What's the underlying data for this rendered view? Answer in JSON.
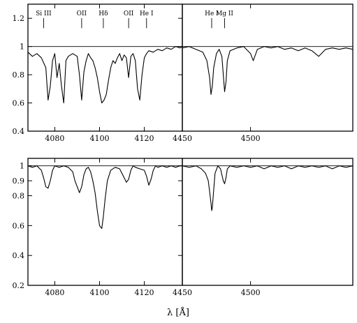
{
  "chart_data": [
    {
      "type": "line",
      "panel": "top-left",
      "xlim": [
        4068,
        4137
      ],
      "ylim": [
        0.4,
        1.3
      ],
      "xticks": [
        4080,
        4100,
        4120
      ],
      "xtick_labels": [
        "4080",
        "4100",
        "4120"
      ],
      "yticks": [
        0.4,
        0.6,
        0.8,
        1.0,
        1.2
      ],
      "ytick_labels": [
        "0.4",
        "0.6",
        "0.8",
        "1",
        "1.2"
      ],
      "continuum": 1.0,
      "line_ids": [
        {
          "label": "Si III",
          "x": 4075
        },
        {
          "label": "OII",
          "x": 4092
        },
        {
          "label": "Hδ",
          "x": 4101.7
        },
        {
          "label": "OII",
          "x": 4113
        },
        {
          "label": "He I",
          "x": 4121
        }
      ],
      "series": [
        {
          "x": [
            4068,
            4070,
            4072,
            4074,
            4076,
            4077,
            4078,
            4079,
            4080,
            4081,
            4082,
            4083,
            4084,
            4085,
            4086,
            4088,
            4090,
            4091,
            4092,
            4093,
            4094,
            4095,
            4096,
            4097,
            4098,
            4099,
            4100,
            4101,
            4102,
            4103,
            4104,
            4105,
            4106,
            4107,
            4108,
            4109,
            4110,
            4111,
            4112,
            4113,
            4114,
            4115,
            4116,
            4117,
            4118,
            4119,
            4120,
            4121,
            4122,
            4124,
            4126,
            4128,
            4130,
            4132,
            4134,
            4136,
            4137
          ],
          "y": [
            0.96,
            0.93,
            0.95,
            0.92,
            0.85,
            0.62,
            0.72,
            0.9,
            0.95,
            0.78,
            0.88,
            0.72,
            0.6,
            0.9,
            0.93,
            0.95,
            0.93,
            0.8,
            0.62,
            0.82,
            0.9,
            0.95,
            0.92,
            0.9,
            0.85,
            0.78,
            0.68,
            0.6,
            0.62,
            0.66,
            0.76,
            0.85,
            0.9,
            0.88,
            0.92,
            0.95,
            0.9,
            0.94,
            0.92,
            0.78,
            0.93,
            0.95,
            0.9,
            0.7,
            0.62,
            0.8,
            0.92,
            0.95,
            0.97,
            0.96,
            0.98,
            0.97,
            0.99,
            0.98,
            1.0,
            0.99,
            1.0
          ]
        }
      ]
    },
    {
      "type": "line",
      "panel": "top-right",
      "xlim": [
        4450,
        4575
      ],
      "ylim": [
        0.4,
        1.3
      ],
      "xticks": [
        4450,
        4500
      ],
      "xtick_labels": [
        "4450",
        "4500"
      ],
      "continuum": 1.0,
      "line_ids": [
        {
          "label": "He I",
          "x": 4471.5
        },
        {
          "label": "Mg II",
          "x": 4481
        }
      ],
      "series": [
        {
          "x": [
            4450,
            4455,
            4460,
            4465,
            4468,
            4470,
            4471,
            4472,
            4473,
            4475,
            4477,
            4479,
            4480,
            4481,
            4482,
            4483,
            4485,
            4490,
            4495,
            4500,
            4502,
            4505,
            4510,
            4515,
            4520,
            4525,
            4530,
            4535,
            4540,
            4545,
            4550,
            4555,
            4560,
            4565,
            4570,
            4575
          ],
          "y": [
            0.99,
            1.0,
            0.98,
            0.96,
            0.9,
            0.78,
            0.66,
            0.72,
            0.85,
            0.95,
            0.98,
            0.93,
            0.8,
            0.68,
            0.75,
            0.9,
            0.97,
            0.99,
            1.0,
            0.95,
            0.9,
            0.98,
            1.0,
            0.99,
            1.0,
            0.98,
            0.99,
            0.97,
            0.99,
            0.97,
            0.93,
            0.98,
            0.99,
            0.98,
            0.99,
            0.98
          ]
        }
      ]
    },
    {
      "type": "line",
      "panel": "bottom-left",
      "xlim": [
        4068,
        4137
      ],
      "ylim": [
        0.2,
        1.05
      ],
      "xticks": [
        4080,
        4100,
        4120
      ],
      "xtick_labels": [
        "4080",
        "4100",
        "4120"
      ],
      "yticks": [
        0.2,
        0.4,
        0.6,
        0.8,
        0.9,
        1.0
      ],
      "ytick_labels": [
        "0.2",
        "0.4",
        "0.6",
        "0.8",
        "0.9",
        "1"
      ],
      "continuum": 1.0,
      "series": [
        {
          "x": [
            4068,
            4070,
            4072,
            4074,
            4075,
            4076,
            4077,
            4078,
            4079,
            4080,
            4082,
            4084,
            4086,
            4088,
            4089,
            4090,
            4091,
            4092,
            4093,
            4094,
            4095,
            4096,
            4097,
            4098,
            4099,
            4100,
            4101,
            4101.7,
            4102.5,
            4103.5,
            4105,
            4107,
            4109,
            4111,
            4112,
            4113,
            4114,
            4115,
            4116,
            4118,
            4120,
            4121,
            4122,
            4123,
            4124,
            4125,
            4126,
            4128,
            4130,
            4132,
            4134,
            4136,
            4137
          ],
          "y": [
            1.0,
            0.99,
            1.0,
            0.97,
            0.92,
            0.86,
            0.85,
            0.9,
            0.97,
            1.0,
            0.99,
            1.0,
            0.99,
            0.96,
            0.9,
            0.86,
            0.82,
            0.86,
            0.94,
            0.98,
            0.99,
            0.96,
            0.9,
            0.82,
            0.7,
            0.6,
            0.58,
            0.66,
            0.78,
            0.9,
            0.97,
            0.99,
            0.98,
            0.92,
            0.89,
            0.91,
            0.97,
            1.0,
            0.99,
            0.98,
            0.97,
            0.93,
            0.87,
            0.91,
            0.97,
            1.0,
            0.99,
            1.0,
            0.99,
            1.0,
            0.99,
            1.0,
            1.0
          ]
        }
      ]
    },
    {
      "type": "line",
      "panel": "bottom-right",
      "xlim": [
        4450,
        4575
      ],
      "ylim": [
        0.2,
        1.05
      ],
      "xticks": [
        4450,
        4500
      ],
      "xtick_labels": [
        "4450",
        "4500"
      ],
      "continuum": 1.0,
      "series": [
        {
          "x": [
            4450,
            4455,
            4460,
            4464,
            4467,
            4469,
            4470,
            4471,
            4471.5,
            4472,
            4473,
            4474,
            4476,
            4478,
            4479,
            4480,
            4481,
            4482,
            4483,
            4485,
            4490,
            4495,
            4500,
            4505,
            4510,
            4515,
            4520,
            4525,
            4530,
            4535,
            4540,
            4545,
            4550,
            4555,
            4560,
            4565,
            4570,
            4575
          ],
          "y": [
            1.0,
            0.99,
            1.0,
            0.98,
            0.95,
            0.9,
            0.83,
            0.75,
            0.7,
            0.72,
            0.84,
            0.95,
            1.0,
            0.98,
            0.94,
            0.9,
            0.88,
            0.92,
            0.98,
            1.0,
            0.99,
            1.0,
            0.99,
            1.0,
            0.98,
            1.0,
            0.99,
            1.0,
            0.98,
            1.0,
            0.99,
            1.0,
            0.99,
            1.0,
            0.98,
            1.0,
            0.99,
            1.0
          ]
        }
      ]
    }
  ],
  "xlabel": "λ [Å]"
}
